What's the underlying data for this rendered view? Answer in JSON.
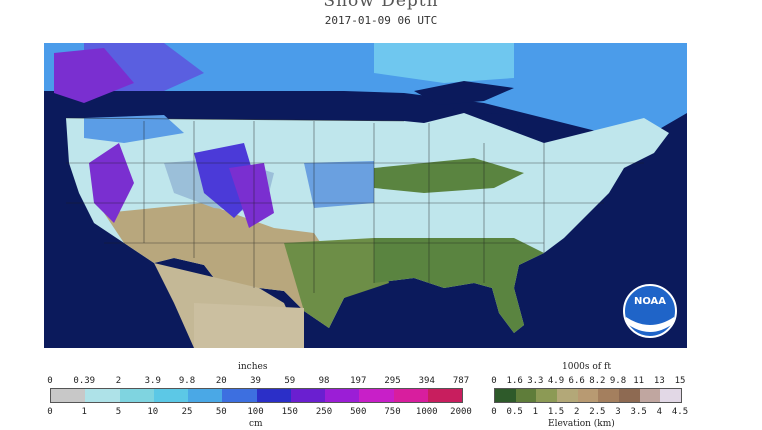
{
  "title": "Snow Depth",
  "date": "2017-01-09 06 UTC",
  "logo_text": "NOAA",
  "snow_legend": {
    "top_unit": "inches",
    "bottom_unit": "cm",
    "inch_ticks": [
      "0",
      "0.39",
      "2",
      "3.9",
      "9.8",
      "20",
      "39",
      "59",
      "98",
      "197",
      "295",
      "394",
      "787"
    ],
    "cm_ticks": [
      "0",
      "1",
      "5",
      "10",
      "25",
      "50",
      "100",
      "150",
      "250",
      "500",
      "750",
      "1000",
      "2000"
    ],
    "colors": [
      "#c8c8c8",
      "#aee2e8",
      "#7fd4e0",
      "#5cc8e6",
      "#4aa8e6",
      "#3d6fe0",
      "#2b2fc8",
      "#6a1fd0",
      "#9b1ed6",
      "#c81fc8",
      "#d81e9e",
      "#c81e5e"
    ]
  },
  "elevation_legend": {
    "top_unit": "1000s of ft",
    "bottom_unit": "Elevation (km)",
    "ft_ticks": [
      "0",
      "1.6",
      "3.3",
      "4.9",
      "6.6",
      "8.2",
      "9.8",
      "11",
      "13",
      "15"
    ],
    "km_ticks": [
      "0",
      "0.5",
      "1",
      "1.5",
      "2",
      "2.5",
      "3",
      "3.5",
      "4",
      "4.5"
    ],
    "colors": [
      "#2e5a2a",
      "#5f7d3a",
      "#8c9a55",
      "#b3a878",
      "#b89a72",
      "#a47f5e",
      "#8e6a52",
      "#c0a6a0",
      "#e2d8e6"
    ]
  }
}
